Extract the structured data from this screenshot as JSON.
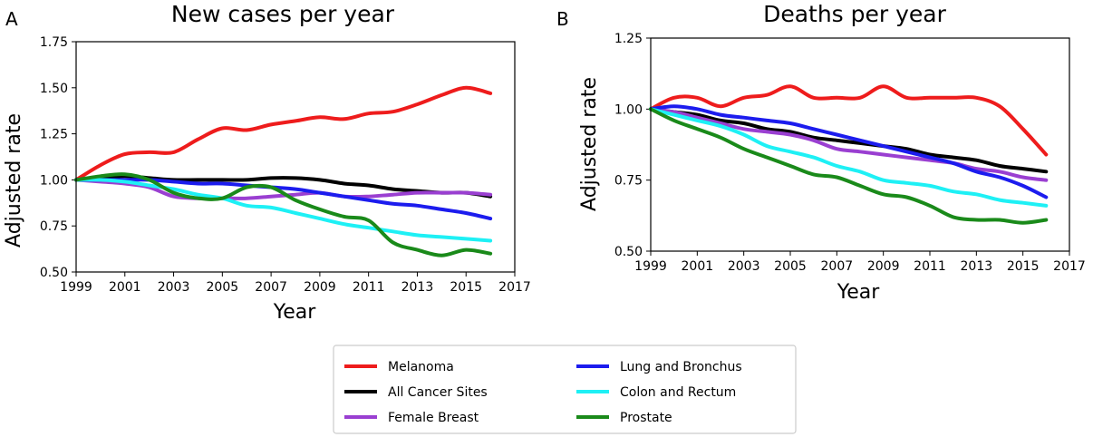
{
  "figure": {
    "legend": {
      "placement": "bottom-center",
      "entries": [
        {
          "name": "Melanoma",
          "color": "#ee1c1c"
        },
        {
          "name": "All Cancer Sites",
          "color": "#000000"
        },
        {
          "name": "Female Breast",
          "color": "#9a3fd1"
        },
        {
          "name": "Lung and Bronchus",
          "color": "#1c1cee"
        },
        {
          "name": "Colon and Rectum",
          "color": "#1ef0f5"
        },
        {
          "name": "Prostate",
          "color": "#1a8a1a"
        }
      ]
    }
  },
  "chart_data": [
    {
      "panel": "A",
      "type": "line",
      "title": "New cases per year",
      "xlabel": "Year",
      "ylabel": "Adjusted rate",
      "xlim": [
        1999,
        2017
      ],
      "ylim": [
        0.5,
        1.75
      ],
      "xticks": [
        1999,
        2001,
        2003,
        2005,
        2007,
        2009,
        2011,
        2013,
        2015,
        2017
      ],
      "yticks": [
        "0.50",
        "0.75",
        "1.00",
        "1.25",
        "1.50",
        "1.75"
      ],
      "grid": false,
      "x": [
        1999,
        2000,
        2001,
        2002,
        2003,
        2004,
        2005,
        2006,
        2007,
        2008,
        2009,
        2010,
        2011,
        2012,
        2013,
        2014,
        2015,
        2016
      ],
      "series": [
        {
          "name": "Melanoma",
          "color": "#ee1c1c",
          "values": [
            1.0,
            1.08,
            1.14,
            1.15,
            1.15,
            1.22,
            1.28,
            1.27,
            1.3,
            1.32,
            1.34,
            1.33,
            1.36,
            1.37,
            1.41,
            1.46,
            1.5,
            1.47
          ]
        },
        {
          "name": "All Cancer Sites",
          "color": "#000000",
          "values": [
            1.0,
            1.01,
            1.02,
            1.01,
            1.0,
            1.0,
            1.0,
            1.0,
            1.01,
            1.01,
            1.0,
            0.98,
            0.97,
            0.95,
            0.94,
            0.93,
            0.93,
            0.91
          ]
        },
        {
          "name": "Female Breast",
          "color": "#9a3fd1",
          "values": [
            1.0,
            0.99,
            0.98,
            0.96,
            0.91,
            0.9,
            0.9,
            0.9,
            0.91,
            0.92,
            0.93,
            0.91,
            0.91,
            0.92,
            0.93,
            0.93,
            0.93,
            0.92
          ]
        },
        {
          "name": "Lung and Bronchus",
          "color": "#1c1cee",
          "values": [
            1.0,
            1.0,
            1.0,
            1.0,
            0.99,
            0.98,
            0.98,
            0.97,
            0.96,
            0.95,
            0.93,
            0.91,
            0.89,
            0.87,
            0.86,
            0.84,
            0.82,
            0.79
          ]
        },
        {
          "name": "Colon and Rectum",
          "color": "#1ef0f5",
          "values": [
            1.0,
            1.0,
            0.99,
            0.97,
            0.95,
            0.92,
            0.9,
            0.86,
            0.85,
            0.82,
            0.79,
            0.76,
            0.74,
            0.72,
            0.7,
            0.69,
            0.68,
            0.67
          ]
        },
        {
          "name": "Prostate",
          "color": "#1a8a1a",
          "values": [
            1.0,
            1.02,
            1.03,
            1.0,
            0.93,
            0.9,
            0.9,
            0.96,
            0.96,
            0.89,
            0.84,
            0.8,
            0.78,
            0.66,
            0.62,
            0.59,
            0.62,
            0.6
          ]
        }
      ]
    },
    {
      "panel": "B",
      "type": "line",
      "title": "Deaths per year",
      "xlabel": "Year",
      "ylabel": "Adjusted rate",
      "xlim": [
        1999,
        2017
      ],
      "ylim": [
        0.5,
        1.25
      ],
      "xticks": [
        1999,
        2001,
        2003,
        2005,
        2007,
        2009,
        2011,
        2013,
        2015,
        2017
      ],
      "yticks": [
        "0.50",
        "0.75",
        "1.00",
        "1.25"
      ],
      "grid": false,
      "x": [
        1999,
        2000,
        2001,
        2002,
        2003,
        2004,
        2005,
        2006,
        2007,
        2008,
        2009,
        2010,
        2011,
        2012,
        2013,
        2014,
        2015,
        2016
      ],
      "series": [
        {
          "name": "Melanoma",
          "color": "#ee1c1c",
          "values": [
            1.0,
            1.04,
            1.04,
            1.01,
            1.04,
            1.05,
            1.08,
            1.04,
            1.04,
            1.04,
            1.08,
            1.04,
            1.04,
            1.04,
            1.04,
            1.01,
            0.93,
            0.84
          ]
        },
        {
          "name": "All Cancer Sites",
          "color": "#000000",
          "values": [
            1.0,
            0.99,
            0.98,
            0.96,
            0.95,
            0.93,
            0.92,
            0.9,
            0.89,
            0.88,
            0.87,
            0.86,
            0.84,
            0.83,
            0.82,
            0.8,
            0.79,
            0.78
          ]
        },
        {
          "name": "Female Breast",
          "color": "#9a3fd1",
          "values": [
            1.0,
            0.99,
            0.97,
            0.95,
            0.93,
            0.92,
            0.91,
            0.89,
            0.86,
            0.85,
            0.84,
            0.83,
            0.82,
            0.81,
            0.79,
            0.78,
            0.76,
            0.75
          ]
        },
        {
          "name": "Lung and Bronchus",
          "color": "#1c1cee",
          "values": [
            1.0,
            1.01,
            1.0,
            0.98,
            0.97,
            0.96,
            0.95,
            0.93,
            0.91,
            0.89,
            0.87,
            0.85,
            0.83,
            0.81,
            0.78,
            0.76,
            0.73,
            0.69
          ]
        },
        {
          "name": "Colon and Rectum",
          "color": "#1ef0f5",
          "values": [
            1.0,
            0.98,
            0.96,
            0.94,
            0.91,
            0.87,
            0.85,
            0.83,
            0.8,
            0.78,
            0.75,
            0.74,
            0.73,
            0.71,
            0.7,
            0.68,
            0.67,
            0.66
          ]
        },
        {
          "name": "Prostate",
          "color": "#1a8a1a",
          "values": [
            1.0,
            0.96,
            0.93,
            0.9,
            0.86,
            0.83,
            0.8,
            0.77,
            0.76,
            0.73,
            0.7,
            0.69,
            0.66,
            0.62,
            0.61,
            0.61,
            0.6,
            0.61
          ]
        }
      ]
    }
  ]
}
